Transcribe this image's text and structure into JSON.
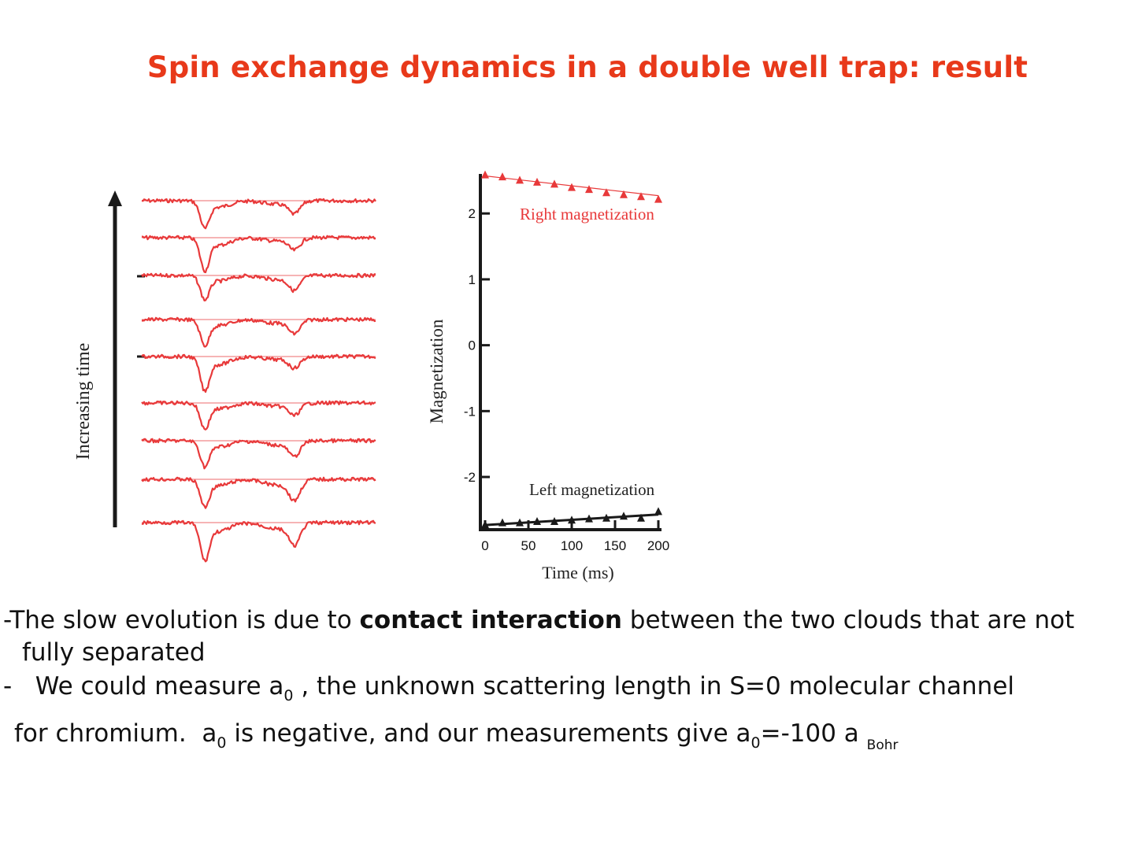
{
  "slide": {
    "title": "Spin exchange dynamics in a double well trap: result"
  },
  "left_figure": {
    "axis_label": "Increasing time",
    "trace_color": "#e8393a",
    "trace_count": 9
  },
  "chart_data": {
    "type": "scatter",
    "xlabel": "Time (ms)",
    "ylabel": "Magnetization",
    "xlim": [
      0,
      200
    ],
    "ylim": [
      -2.8,
      2.6
    ],
    "xticks": [
      "0",
      "50",
      "100",
      "150",
      "200"
    ],
    "yticks": [
      "2",
      "1",
      "0",
      "-1",
      "-2"
    ],
    "xtick_values": [
      0,
      50,
      100,
      150,
      200
    ],
    "ytick_values": [
      2,
      1,
      0,
      -1,
      -2
    ],
    "series": [
      {
        "name": "Right magnetization",
        "color": "#e8393a",
        "marker": "triangle",
        "x": [
          0,
          20,
          40,
          60,
          80,
          100,
          120,
          140,
          160,
          180,
          200
        ],
        "y": [
          2.58,
          2.55,
          2.5,
          2.47,
          2.44,
          2.39,
          2.36,
          2.31,
          2.28,
          2.25,
          2.21
        ],
        "fit": [
          [
            0,
            2.57
          ],
          [
            200,
            2.27
          ]
        ]
      },
      {
        "name": "Left magnetization",
        "color": "#1a1a1a",
        "marker": "triangle",
        "x": [
          0,
          20,
          40,
          60,
          80,
          100,
          120,
          140,
          160,
          180,
          200
        ],
        "y": [
          -2.73,
          -2.7,
          -2.7,
          -2.68,
          -2.68,
          -2.66,
          -2.64,
          -2.63,
          -2.6,
          -2.63,
          -2.53
        ],
        "fit": [
          [
            0,
            -2.73
          ],
          [
            200,
            -2.57
          ]
        ]
      }
    ]
  },
  "text": {
    "line1_a": "-The slow evolution is due to ",
    "line1_bold": "contact interaction",
    "line1_b": " between the two clouds that are not",
    "line2": "fully separated",
    "line3_a": "-   We could measure a",
    "line3_sub": "0",
    "line3_b": " , the unknown scattering length in S=0 molecular channel",
    "line4_a": "for chromium.  a",
    "line4_sub1": "0",
    "line4_b": " is negative, and our measurements give a",
    "line4_sub2": "0",
    "line4_c": "=-100 a ",
    "line4_sub3": "Bohr"
  }
}
